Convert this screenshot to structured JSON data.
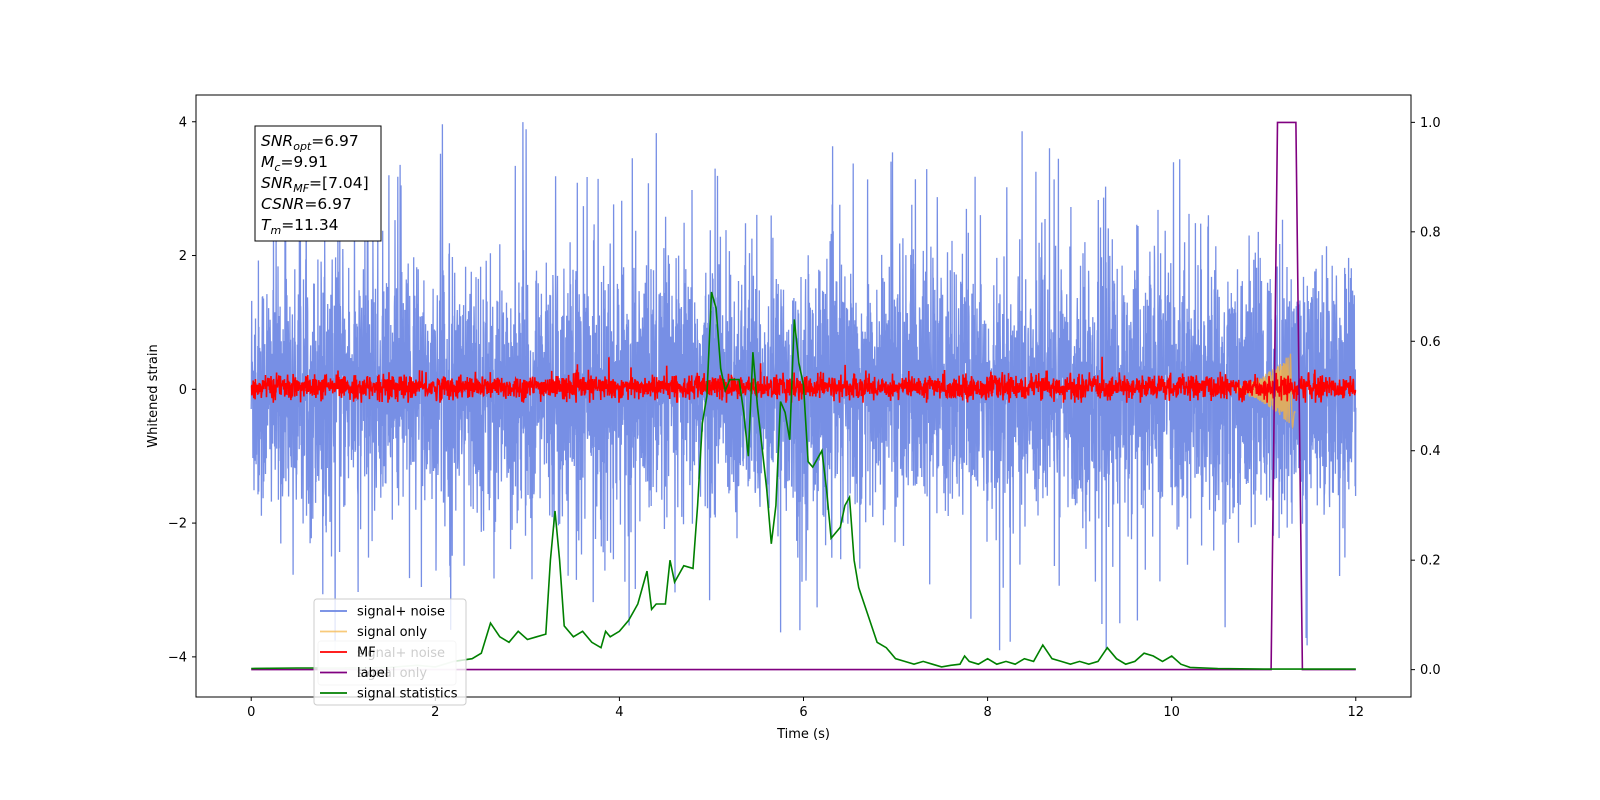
{
  "chart_data": {
    "type": "line",
    "xlabel": "Time (s)",
    "ylabel": "Whitened strain",
    "xlim": [
      -0.6,
      12.6
    ],
    "ylim": [
      -4.6,
      4.4
    ],
    "y2lim": [
      -0.05,
      1.05
    ],
    "x_ticks": [
      "0",
      "2",
      "4",
      "6",
      "8",
      "10",
      "12"
    ],
    "y_ticks": [
      "4",
      "2",
      "0",
      "−2",
      "−4"
    ],
    "y2_ticks": [
      "1.0",
      "0.8",
      "0.6",
      "0.4",
      "0.2",
      "0.0"
    ],
    "x_tick_values": [
      0,
      2,
      4,
      6,
      8,
      10,
      12
    ],
    "y_tick_values": [
      4,
      2,
      0,
      -2,
      -4
    ],
    "y2_tick_values": [
      1.0,
      0.8,
      0.6,
      0.4,
      0.2,
      0.0
    ],
    "grid": false,
    "legend_placement": "lower-left",
    "annotation_lines": [
      {
        "symbol": "SNR",
        "sub": "opt",
        "rest": "=6.97"
      },
      {
        "symbol": "M",
        "sub": "c",
        "rest": "=9.91"
      },
      {
        "symbol": "SNR",
        "sub": "MF",
        "rest": "=[7.04]"
      },
      {
        "symbol": "CSNR",
        "sub": "",
        "rest": "=6.97"
      },
      {
        "symbol": "T",
        "sub": "m",
        "rest": "=11.34"
      }
    ],
    "ghost_legend": [
      "signal+ noise",
      "signal only"
    ],
    "series": [
      {
        "name": "signal+ noise",
        "axis": "left",
        "color": "#6b86e3",
        "kind": "noise",
        "x_range": [
          0,
          12
        ],
        "envelope": {
          "center": 0,
          "typical_peak": 2.6,
          "max": 4.0,
          "min": -3.9
        }
      },
      {
        "name": "signal only",
        "axis": "left",
        "color": "#f5b342",
        "kind": "chirp",
        "x_range": [
          10.7,
          11.34
        ],
        "amplitude_end": 0.55
      },
      {
        "name": "MF",
        "axis": "left",
        "color": "#ff0000",
        "kind": "noise",
        "x_range": [
          0,
          12
        ],
        "envelope": {
          "center": 0.03,
          "typical_peak": 0.2,
          "max": 0.65,
          "min": -0.2
        }
      },
      {
        "name": "label",
        "axis": "right",
        "color": "#800080",
        "kind": "step",
        "points": [
          [
            0,
            0
          ],
          [
            11.08,
            0
          ],
          [
            11.15,
            1.0
          ],
          [
            11.35,
            1.0
          ],
          [
            11.42,
            0
          ],
          [
            12,
            0
          ]
        ]
      },
      {
        "name": "signal statistics",
        "axis": "right",
        "color": "#008000",
        "kind": "line",
        "points": [
          [
            0,
            0.002
          ],
          [
            0.5,
            0.003
          ],
          [
            1.0,
            0.003
          ],
          [
            1.5,
            0.004
          ],
          [
            1.8,
            0.008
          ],
          [
            2.0,
            0.005
          ],
          [
            2.2,
            0.015
          ],
          [
            2.4,
            0.02
          ],
          [
            2.5,
            0.03
          ],
          [
            2.6,
            0.085
          ],
          [
            2.7,
            0.06
          ],
          [
            2.8,
            0.05
          ],
          [
            2.9,
            0.07
          ],
          [
            3.0,
            0.055
          ],
          [
            3.1,
            0.06
          ],
          [
            3.2,
            0.065
          ],
          [
            3.25,
            0.2
          ],
          [
            3.3,
            0.29
          ],
          [
            3.35,
            0.2
          ],
          [
            3.4,
            0.08
          ],
          [
            3.5,
            0.06
          ],
          [
            3.6,
            0.07
          ],
          [
            3.7,
            0.05
          ],
          [
            3.8,
            0.04
          ],
          [
            3.85,
            0.07
          ],
          [
            3.9,
            0.06
          ],
          [
            4.0,
            0.07
          ],
          [
            4.1,
            0.09
          ],
          [
            4.2,
            0.12
          ],
          [
            4.3,
            0.18
          ],
          [
            4.35,
            0.11
          ],
          [
            4.4,
            0.12
          ],
          [
            4.5,
            0.12
          ],
          [
            4.55,
            0.2
          ],
          [
            4.6,
            0.16
          ],
          [
            4.7,
            0.19
          ],
          [
            4.8,
            0.185
          ],
          [
            4.85,
            0.3
          ],
          [
            4.9,
            0.45
          ],
          [
            4.95,
            0.5
          ],
          [
            5.0,
            0.69
          ],
          [
            5.05,
            0.66
          ],
          [
            5.1,
            0.55
          ],
          [
            5.15,
            0.51
          ],
          [
            5.2,
            0.53
          ],
          [
            5.3,
            0.53
          ],
          [
            5.35,
            0.47
          ],
          [
            5.4,
            0.39
          ],
          [
            5.45,
            0.58
          ],
          [
            5.5,
            0.48
          ],
          [
            5.6,
            0.33
          ],
          [
            5.65,
            0.23
          ],
          [
            5.7,
            0.3
          ],
          [
            5.75,
            0.49
          ],
          [
            5.8,
            0.47
          ],
          [
            5.85,
            0.42
          ],
          [
            5.9,
            0.64
          ],
          [
            5.95,
            0.56
          ],
          [
            6.0,
            0.52
          ],
          [
            6.05,
            0.38
          ],
          [
            6.1,
            0.37
          ],
          [
            6.2,
            0.4
          ],
          [
            6.25,
            0.33
          ],
          [
            6.3,
            0.24
          ],
          [
            6.4,
            0.26
          ],
          [
            6.45,
            0.3
          ],
          [
            6.5,
            0.315
          ],
          [
            6.55,
            0.2
          ],
          [
            6.6,
            0.15
          ],
          [
            6.7,
            0.1
          ],
          [
            6.8,
            0.05
          ],
          [
            6.9,
            0.04
          ],
          [
            7.0,
            0.02
          ],
          [
            7.1,
            0.015
          ],
          [
            7.2,
            0.01
          ],
          [
            7.3,
            0.015
          ],
          [
            7.4,
            0.01
          ],
          [
            7.5,
            0.005
          ],
          [
            7.6,
            0.008
          ],
          [
            7.7,
            0.01
          ],
          [
            7.75,
            0.025
          ],
          [
            7.8,
            0.015
          ],
          [
            7.9,
            0.01
          ],
          [
            8.0,
            0.02
          ],
          [
            8.1,
            0.01
          ],
          [
            8.2,
            0.015
          ],
          [
            8.3,
            0.01
          ],
          [
            8.4,
            0.02
          ],
          [
            8.5,
            0.015
          ],
          [
            8.6,
            0.045
          ],
          [
            8.7,
            0.02
          ],
          [
            8.8,
            0.015
          ],
          [
            8.9,
            0.01
          ],
          [
            9.0,
            0.015
          ],
          [
            9.1,
            0.01
          ],
          [
            9.2,
            0.015
          ],
          [
            9.3,
            0.04
          ],
          [
            9.4,
            0.02
          ],
          [
            9.5,
            0.01
          ],
          [
            9.6,
            0.015
          ],
          [
            9.7,
            0.03
          ],
          [
            9.8,
            0.025
          ],
          [
            9.9,
            0.015
          ],
          [
            10.0,
            0.025
          ],
          [
            10.1,
            0.01
          ],
          [
            10.2,
            0.004
          ],
          [
            10.5,
            0.002
          ],
          [
            11.0,
            0.001
          ],
          [
            11.5,
            0.001
          ],
          [
            12.0,
            0.001
          ]
        ]
      }
    ]
  }
}
